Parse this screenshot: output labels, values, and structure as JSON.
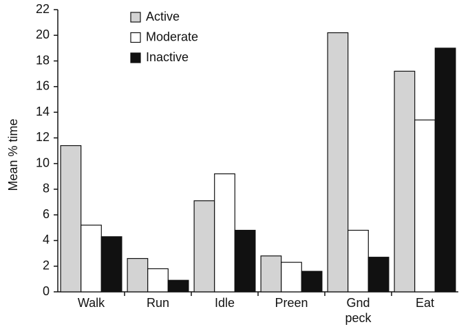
{
  "chart_data": {
    "type": "bar",
    "y_label": "Mean % time",
    "categories": [
      "Walk",
      "Run",
      "Idle",
      "Preen",
      "Gnd peck",
      "Eat"
    ],
    "series": [
      {
        "name": "Active",
        "color": "#d3d3d3",
        "values": [
          11.4,
          2.6,
          7.1,
          2.8,
          20.2,
          17.2
        ]
      },
      {
        "name": "Moderate",
        "color": "#ffffff",
        "values": [
          5.2,
          1.8,
          9.2,
          2.3,
          4.8,
          13.4
        ]
      },
      {
        "name": "Inactive",
        "color": "#111111",
        "values": [
          4.3,
          0.9,
          4.8,
          1.6,
          2.7,
          19.0
        ]
      }
    ],
    "ylim": [
      0,
      22
    ],
    "yticks": [
      0,
      2,
      4,
      6,
      8,
      10,
      12,
      14,
      16,
      18,
      20,
      22
    ],
    "legend": "upper center"
  }
}
